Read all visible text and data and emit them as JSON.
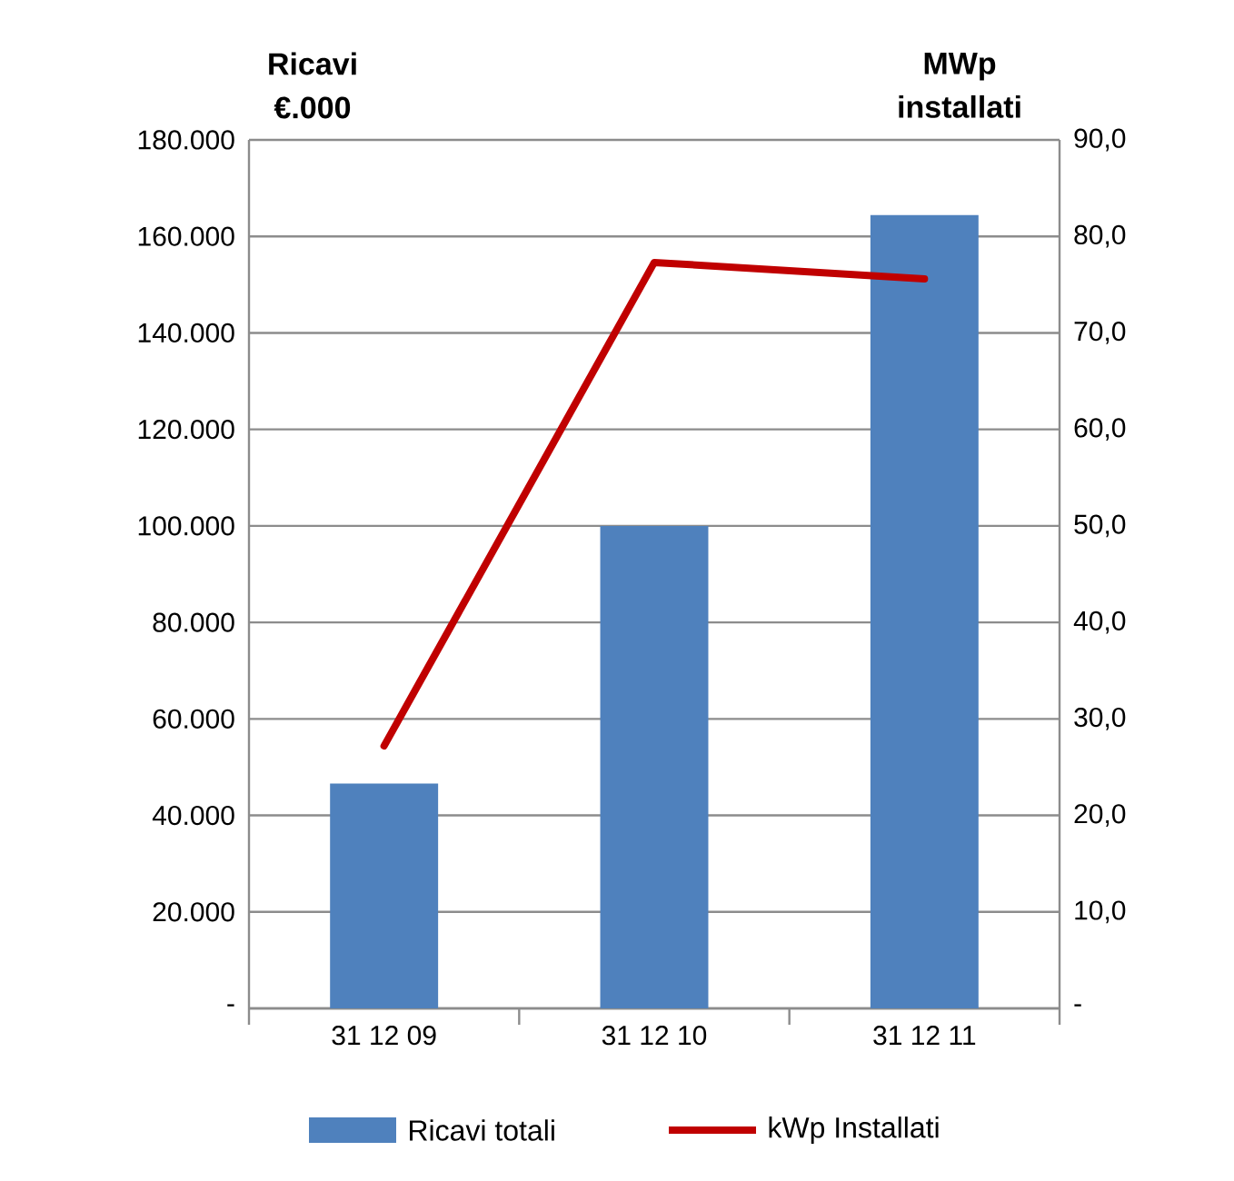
{
  "chart_data": {
    "type": "bar",
    "ylabel": "Ricavi €.000",
    "y2label": "MWp installati",
    "categories": [
      "31 12 09",
      "31 12 10",
      "31 12 11"
    ],
    "series": [
      {
        "name": "Ricavi totali",
        "color": "#4f81bd",
        "values": [
          46600,
          100000,
          164400
        ]
      },
      {
        "name": "kWp Installati",
        "type": "line",
        "axis": "y2",
        "color": "#c00000",
        "values": [
          27.2,
          77.3,
          75.6
        ]
      }
    ],
    "ylim": [
      0,
      180000
    ],
    "yticks": [
      {
        "value": 0,
        "label": "-"
      },
      {
        "value": 20000,
        "label": "20.000"
      },
      {
        "value": 40000,
        "label": "40.000"
      },
      {
        "value": 60000,
        "label": "60.000"
      },
      {
        "value": 80000,
        "label": "80.000"
      },
      {
        "value": 100000,
        "label": "100.000"
      },
      {
        "value": 120000,
        "label": "120.000"
      },
      {
        "value": 140000,
        "label": "140.000"
      },
      {
        "value": 160000,
        "label": "160.000"
      },
      {
        "value": 180000,
        "label": "180.000"
      }
    ],
    "y2lim": [
      0,
      90
    ],
    "y2ticks": [
      {
        "value": 0,
        "label": "-"
      },
      {
        "value": 10,
        "label": "10,0"
      },
      {
        "value": 20,
        "label": "20,0"
      },
      {
        "value": 30,
        "label": "30,0"
      },
      {
        "value": 40,
        "label": "40,0"
      },
      {
        "value": 50,
        "label": "50,0"
      },
      {
        "value": 60,
        "label": "60,0"
      },
      {
        "value": 70,
        "label": "70,0"
      },
      {
        "value": 80,
        "label": "80,0"
      },
      {
        "value": 90,
        "label": "90,0"
      }
    ],
    "grid": "y",
    "legend": "bottom"
  }
}
